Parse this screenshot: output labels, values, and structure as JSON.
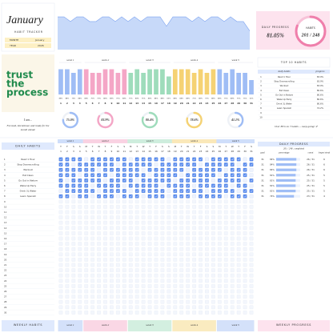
{
  "header": {
    "title": "January",
    "subtitle": "HABIT TRACKER",
    "month_label": "MONTH",
    "month": "January",
    "year_label": "YEAR",
    "year": "2026"
  },
  "summary": {
    "progress_label": "DAILY PROGRESS",
    "value": 81.05,
    "value_label": "81.05%",
    "habits_label": "HABITS",
    "habits": "201 / 248"
  },
  "quote": [
    "trust",
    "the",
    "process"
  ],
  "intention": {
    "label": "I am...",
    "text": [
      "Focused, intentional, and ready for the",
      "month ahead."
    ]
  },
  "chart_data": {
    "type": "bar",
    "categories": [
      1,
      2,
      3,
      4,
      5,
      6,
      7,
      8,
      9,
      10,
      11,
      12,
      13,
      14,
      15,
      16,
      17,
      18,
      19,
      20,
      21,
      22,
      23,
      24,
      25,
      26,
      27,
      28,
      29,
      30,
      31
    ],
    "weekdays": [
      "T",
      "F",
      "S",
      "S",
      "M",
      "T",
      "W",
      "T",
      "F",
      "S",
      "S",
      "M",
      "T",
      "W",
      "T",
      "F",
      "S",
      "S",
      "M",
      "T",
      "W",
      "T",
      "F",
      "S",
      "S",
      "M",
      "T",
      "W",
      "T",
      "F",
      "S"
    ],
    "values": [
      87.5,
      87.5,
      75,
      87.5,
      87.5,
      75,
      75,
      87.5,
      87.5,
      75,
      87.5,
      75,
      87.5,
      75,
      87.5,
      87.5,
      87.5,
      62.5,
      87.5,
      87.5,
      87.5,
      75,
      87.5,
      75,
      87.5,
      87.5,
      75,
      87.5,
      75,
      75,
      50
    ],
    "value_labels": [
      "88%",
      "88%",
      "75%",
      "88%",
      "88%",
      "75%",
      "75%",
      "88%",
      "88%",
      "75%",
      "88%",
      "75%",
      "88%",
      "75%",
      "88%",
      "88%",
      "88%",
      "63%",
      "88%",
      "88%",
      "88%",
      "75%",
      "88%",
      "75%",
      "88%",
      "88%",
      "75%",
      "88%",
      "75%",
      "75%",
      "50%"
    ],
    "ylim": [
      0,
      100
    ],
    "weeks": [
      "week 1",
      "week 2",
      "week 3",
      "week 4",
      "week 5"
    ],
    "week_colors": [
      "#9fbdf5",
      "#f4a6c6",
      "#9edcbb",
      "#f5d273",
      "#9fbdf5"
    ]
  },
  "weekly_progress": {
    "values": [
      75,
      83.9,
      80.4,
      78.6,
      41.1
    ],
    "value_labels": [
      "75.0%",
      "83.9%",
      "80.4%",
      "78.6%",
      "41.1%"
    ]
  },
  "top_habits": {
    "title": "TOP 10 HABITS",
    "columns": [
      "daily habits",
      "progress"
    ],
    "rows": [
      [
        1,
        "Read 1 Hour",
        "83.9%"
      ],
      [
        2,
        "Stop Doomscrolling",
        "83.9%"
      ],
      [
        3,
        "Workout",
        "83.9%"
      ],
      [
        4,
        "Eat Clean",
        "80.6%"
      ],
      [
        5,
        "Go Out in Nature",
        "80.6%"
      ],
      [
        6,
        "Wake Up Early",
        "80.6%"
      ],
      [
        7,
        "Drink 3L Water",
        "80.6%"
      ],
      [
        8,
        "Learn Spanish",
        "74.2%"
      ],
      [
        9,
        null,
        null
      ],
      [
        10,
        null,
        null
      ]
    ],
    "note": "Over 80% on 7 habits — keep going! ✔"
  },
  "habits": {
    "title": "DAILY HABITS",
    "row_numbers": [
      1,
      2,
      3,
      4,
      5,
      6,
      7,
      8,
      9,
      10,
      11,
      12,
      13,
      14,
      15,
      16,
      17,
      18,
      19,
      20,
      21,
      22,
      23,
      24,
      25,
      26,
      27,
      28,
      29,
      30
    ],
    "rows": [
      {
        "name": "Read 1 Hour",
        "checks": [
          1,
          1,
          1,
          1,
          0,
          1,
          1,
          1,
          1,
          1,
          1,
          0,
          1,
          1,
          1,
          1,
          1,
          0,
          1,
          1,
          1,
          1,
          1,
          0,
          1,
          1,
          1,
          1,
          1,
          0,
          1
        ]
      },
      {
        "name": "Stop Doomscrolling",
        "checks": [
          1,
          1,
          0,
          1,
          1,
          1,
          1,
          1,
          1,
          0,
          1,
          1,
          1,
          1,
          1,
          0,
          1,
          1,
          1,
          1,
          1,
          1,
          0,
          1,
          1,
          1,
          1,
          1,
          0,
          1,
          1
        ]
      },
      {
        "name": "Workout",
        "checks": [
          1,
          1,
          1,
          1,
          1,
          1,
          0,
          1,
          1,
          1,
          1,
          1,
          1,
          0,
          1,
          1,
          1,
          1,
          1,
          1,
          0,
          1,
          1,
          1,
          1,
          1,
          0,
          1,
          1,
          1,
          0
        ]
      },
      {
        "name": "Eat Clean",
        "checks": [
          1,
          1,
          1,
          0,
          1,
          1,
          1,
          1,
          0,
          1,
          1,
          1,
          1,
          1,
          0,
          1,
          1,
          1,
          1,
          0,
          1,
          1,
          1,
          1,
          1,
          0,
          1,
          1,
          1,
          1,
          0
        ]
      },
      {
        "name": "Go Out in Nature",
        "checks": [
          1,
          0,
          1,
          1,
          1,
          1,
          1,
          0,
          1,
          1,
          1,
          1,
          0,
          1,
          1,
          1,
          1,
          1,
          0,
          1,
          1,
          1,
          1,
          1,
          0,
          1,
          1,
          1,
          1,
          0,
          1
        ]
      },
      {
        "name": "Wake Up Early",
        "checks": [
          1,
          1,
          1,
          1,
          1,
          0,
          1,
          1,
          1,
          1,
          0,
          1,
          1,
          1,
          1,
          1,
          0,
          1,
          1,
          1,
          1,
          0,
          1,
          1,
          1,
          1,
          1,
          0,
          1,
          1,
          0
        ]
      },
      {
        "name": "Drink 3L Water",
        "checks": [
          0,
          1,
          1,
          1,
          1,
          1,
          0,
          1,
          1,
          1,
          1,
          0,
          1,
          1,
          1,
          1,
          1,
          0,
          1,
          1,
          1,
          1,
          1,
          0,
          1,
          1,
          1,
          1,
          0,
          1,
          1
        ]
      },
      {
        "name": "Learn Spanish",
        "checks": [
          1,
          1,
          0,
          1,
          1,
          0,
          1,
          1,
          1,
          0,
          1,
          1,
          1,
          0,
          1,
          1,
          1,
          0,
          1,
          1,
          1,
          0,
          1,
          1,
          1,
          1,
          0,
          1,
          1,
          1,
          0
        ]
      }
    ]
  },
  "daily_progress": {
    "title": "DAILY PROGRESS",
    "subtitle": "201 / 248 . completed",
    "columns": [
      "goal",
      "percentage",
      "count",
      "longest streak"
    ],
    "rows": [
      {
        "goal": 31,
        "percent": 84,
        "percent_label": "84%",
        "count": "26 / 31",
        "streak": 6
      },
      {
        "goal": 31,
        "percent": 84,
        "percent_label": "84%",
        "count": "26 / 31",
        "streak": 6
      },
      {
        "goal": 31,
        "percent": 84,
        "percent_label": "84%",
        "count": "26 / 31",
        "streak": 6
      },
      {
        "goal": 31,
        "percent": 81,
        "percent_label": "81%",
        "count": "25 / 31",
        "streak": 5
      },
      {
        "goal": 31,
        "percent": 81,
        "percent_label": "81%",
        "count": "25 / 31",
        "streak": 5
      },
      {
        "goal": 31,
        "percent": 81,
        "percent_label": "81%",
        "count": "25 / 31",
        "streak": 5
      },
      {
        "goal": 31,
        "percent": 81,
        "percent_label": "81%",
        "count": "25 / 31",
        "streak": 5
      },
      {
        "goal": 31,
        "percent": 74,
        "percent_label": "74%",
        "count": "23 / 31",
        "streak": 4
      }
    ]
  },
  "footer": {
    "left": "WEEKLY HABITS",
    "right": "WEEKLY PROGRESS"
  }
}
